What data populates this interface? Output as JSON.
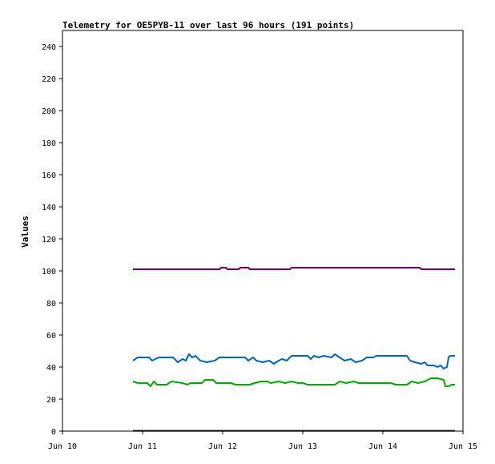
{
  "chart_data": {
    "type": "line",
    "title": "Telemetry for OE5PYB-11 over last 96 hours (191 points)",
    "xlabel": "",
    "ylabel": "Values",
    "xlim": [
      "Jun 10",
      "Jun 15"
    ],
    "ylim": [
      0,
      250
    ],
    "x_ticks": [
      "Jun 10",
      "Jun 11",
      "Jun 12",
      "Jun 13",
      "Jun 14",
      "Jun 15"
    ],
    "y_ticks": [
      0,
      20,
      40,
      60,
      80,
      100,
      120,
      140,
      160,
      180,
      200,
      220,
      240
    ],
    "grid": false,
    "legend": "none",
    "x_unit": "days since Jun 10",
    "series": [
      {
        "color": "#660066",
        "points": [
          [
            0.88,
            101
          ],
          [
            1.96,
            101
          ],
          [
            1.98,
            102
          ],
          [
            2.04,
            102
          ],
          [
            2.06,
            101
          ],
          [
            2.2,
            101
          ],
          [
            2.22,
            102
          ],
          [
            2.32,
            102
          ],
          [
            2.34,
            101
          ],
          [
            2.84,
            101
          ],
          [
            2.86,
            102
          ],
          [
            4.46,
            102
          ],
          [
            4.48,
            101
          ],
          [
            4.9,
            101
          ]
        ]
      },
      {
        "color": "#0066bb",
        "points": [
          [
            0.88,
            44
          ],
          [
            0.94,
            46
          ],
          [
            1.08,
            46
          ],
          [
            1.12,
            44
          ],
          [
            1.2,
            46
          ],
          [
            1.38,
            46
          ],
          [
            1.44,
            43
          ],
          [
            1.5,
            45
          ],
          [
            1.54,
            44
          ],
          [
            1.58,
            48
          ],
          [
            1.62,
            46
          ],
          [
            1.66,
            47
          ],
          [
            1.72,
            44
          ],
          [
            1.8,
            43
          ],
          [
            1.9,
            44
          ],
          [
            1.96,
            46
          ],
          [
            2.28,
            46
          ],
          [
            2.32,
            44
          ],
          [
            2.38,
            46
          ],
          [
            2.42,
            44
          ],
          [
            2.5,
            43
          ],
          [
            2.58,
            44
          ],
          [
            2.64,
            42
          ],
          [
            2.7,
            44
          ],
          [
            2.74,
            45
          ],
          [
            2.8,
            44
          ],
          [
            2.86,
            47
          ],
          [
            3.06,
            47
          ],
          [
            3.1,
            45
          ],
          [
            3.14,
            47
          ],
          [
            3.2,
            46
          ],
          [
            3.26,
            47
          ],
          [
            3.36,
            46
          ],
          [
            3.4,
            48
          ],
          [
            3.46,
            46
          ],
          [
            3.52,
            44
          ],
          [
            3.6,
            45
          ],
          [
            3.66,
            43
          ],
          [
            3.74,
            44
          ],
          [
            3.8,
            46
          ],
          [
            3.88,
            46
          ],
          [
            3.92,
            47
          ],
          [
            4.3,
            47
          ],
          [
            4.34,
            44
          ],
          [
            4.4,
            43
          ],
          [
            4.48,
            42
          ],
          [
            4.52,
            43
          ],
          [
            4.56,
            41
          ],
          [
            4.64,
            41
          ],
          [
            4.68,
            40
          ],
          [
            4.72,
            41
          ],
          [
            4.76,
            39
          ],
          [
            4.8,
            40
          ],
          [
            4.82,
            46
          ],
          [
            4.84,
            47
          ],
          [
            4.9,
            47
          ]
        ]
      },
      {
        "color": "#00aa00",
        "points": [
          [
            0.88,
            31
          ],
          [
            0.94,
            30
          ],
          [
            1.06,
            30
          ],
          [
            1.1,
            28
          ],
          [
            1.14,
            31
          ],
          [
            1.18,
            29
          ],
          [
            1.3,
            29
          ],
          [
            1.36,
            31
          ],
          [
            1.5,
            30
          ],
          [
            1.56,
            29
          ],
          [
            1.6,
            30
          ],
          [
            1.74,
            30
          ],
          [
            1.78,
            32
          ],
          [
            1.88,
            32
          ],
          [
            1.92,
            30
          ],
          [
            2.1,
            30
          ],
          [
            2.16,
            29
          ],
          [
            2.34,
            29
          ],
          [
            2.4,
            30
          ],
          [
            2.48,
            31
          ],
          [
            2.56,
            31
          ],
          [
            2.6,
            30
          ],
          [
            2.7,
            31
          ],
          [
            2.78,
            30
          ],
          [
            2.86,
            31
          ],
          [
            2.94,
            30
          ],
          [
            3.0,
            30
          ],
          [
            3.06,
            29
          ],
          [
            3.4,
            29
          ],
          [
            3.46,
            31
          ],
          [
            3.54,
            30
          ],
          [
            3.64,
            31
          ],
          [
            3.7,
            30
          ],
          [
            3.9,
            30
          ],
          [
            3.96,
            30
          ],
          [
            4.1,
            30
          ],
          [
            4.16,
            29
          ],
          [
            4.3,
            29
          ],
          [
            4.36,
            31
          ],
          [
            4.44,
            30
          ],
          [
            4.52,
            31
          ],
          [
            4.6,
            33
          ],
          [
            4.68,
            33
          ],
          [
            4.76,
            32
          ],
          [
            4.78,
            28
          ],
          [
            4.82,
            28
          ],
          [
            4.86,
            29
          ],
          [
            4.9,
            29
          ]
        ]
      },
      {
        "color": "#000000",
        "points": [
          [
            0.88,
            0.2
          ],
          [
            4.9,
            0.2
          ]
        ]
      }
    ]
  }
}
